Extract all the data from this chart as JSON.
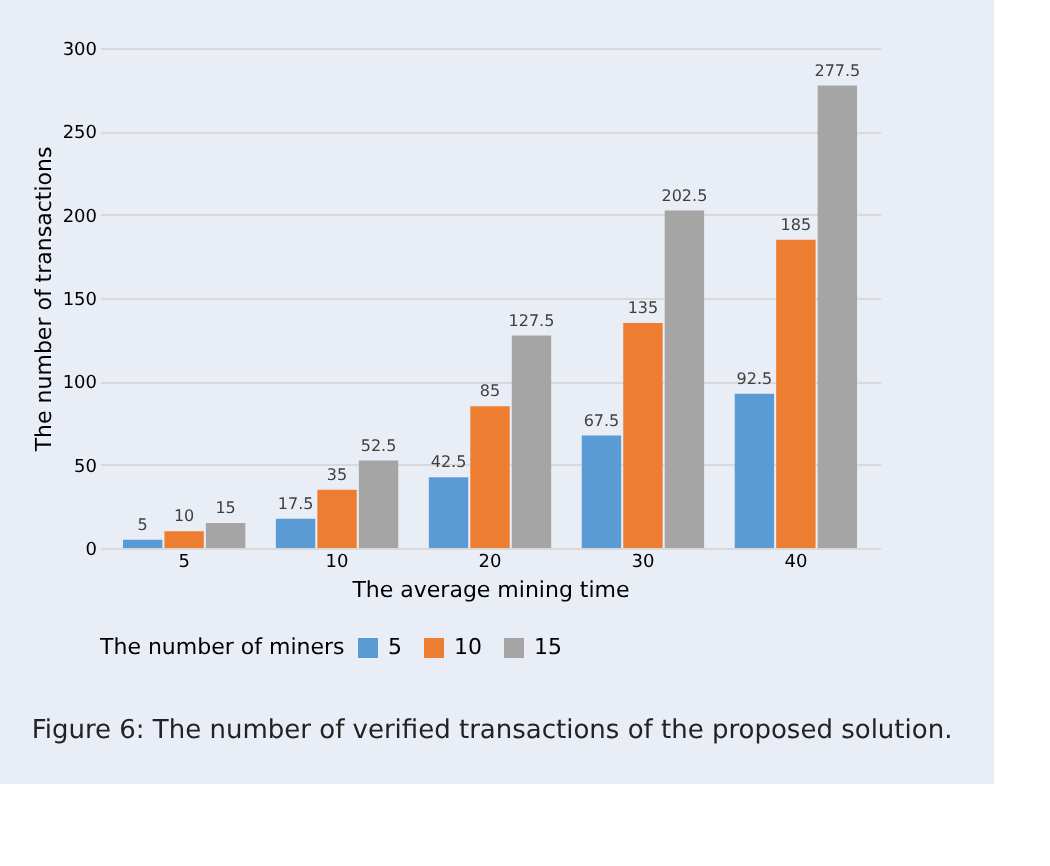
{
  "chart_data": {
    "type": "bar",
    "categories": [
      "5",
      "10",
      "20",
      "30",
      "40"
    ],
    "xlabel": "The average mining time",
    "ylabel": "The number of transactions",
    "legend_title": "The number of miners",
    "series": [
      {
        "name": "5",
        "color": "#5b9bd5",
        "values": [
          5,
          17.5,
          42.5,
          67.5,
          92.5
        ]
      },
      {
        "name": "10",
        "color": "#ed7d31",
        "values": [
          10,
          35,
          85,
          135,
          185
        ]
      },
      {
        "name": "15",
        "color": "#a5a5a5",
        "values": [
          15,
          52.5,
          127.5,
          202.5,
          277.5
        ]
      }
    ],
    "ylim": [
      0,
      300
    ],
    "yticks": [
      0,
      50,
      100,
      150,
      200,
      250,
      300
    ],
    "grid": "y",
    "legend": "bottom",
    "data_labels": true,
    "annotations": [
      "Figure 6: The number of verified transactions of the proposed solution."
    ]
  }
}
